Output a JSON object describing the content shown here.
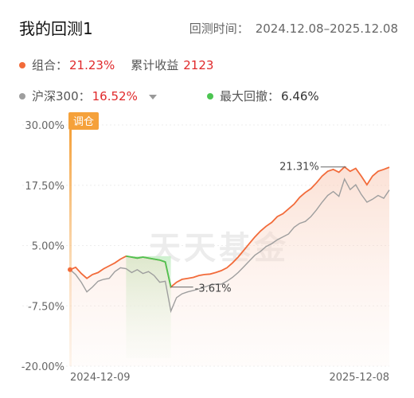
{
  "header": {
    "title": "我的回测1",
    "period_label": "回测时间：",
    "period_range": "2024.12.08–2025.12.08"
  },
  "legend": {
    "portfolio": {
      "label": "组合：",
      "value": "21.23%",
      "color": "#f26b3a"
    },
    "cumulative": {
      "label": "累计收益",
      "value": "2123",
      "color": "#e0292b"
    },
    "benchmark": {
      "label": "沪深300：",
      "value": "16.52%",
      "color": "#9e9e9e"
    },
    "drawdown": {
      "label": "最大回撤：",
      "value": "6.46%",
      "color": "#4cc552"
    }
  },
  "chart_data": {
    "type": "line",
    "x_start": "2024-12-09",
    "x_end": "2025-12-08",
    "ylim": [
      -20,
      30
    ],
    "y_ticks": [
      "30.00%",
      "17.50%",
      "5.00%",
      "-7.50%",
      "-20.00%"
    ],
    "y_tick_values": [
      30,
      17.5,
      5,
      -7.5,
      -20
    ],
    "x_ticks": [
      "2024-12-09",
      "2025-12-08"
    ],
    "rebalance_label": "调仓",
    "watermark": "天天基金",
    "annotations": [
      {
        "text": "21.31%",
        "kind": "peak"
      },
      {
        "text": "-3.61%",
        "kind": "trough"
      }
    ],
    "series": [
      {
        "key": "portfolio",
        "color": "#f26b3a",
        "values": [
          0.0,
          0.5,
          -0.8,
          -1.8,
          -1.0,
          -0.6,
          0.2,
          0.8,
          1.4,
          2.2,
          2.8,
          2.6,
          2.4,
          2.6,
          2.4,
          2.2,
          2.0,
          1.6,
          -3.6,
          -2.6,
          -2.0,
          -1.8,
          -1.6,
          -1.2,
          -1.0,
          -0.9,
          -0.6,
          -0.2,
          0.4,
          1.4,
          2.6,
          4.0,
          5.4,
          6.8,
          8.0,
          9.0,
          9.8,
          11.0,
          11.6,
          12.6,
          13.6,
          15.0,
          16.0,
          16.8,
          18.0,
          19.4,
          20.4,
          20.8,
          20.2,
          21.3,
          20.4,
          21.0,
          19.4,
          17.6,
          19.4,
          20.4,
          20.8,
          21.23
        ]
      },
      {
        "key": "benchmark",
        "color": "#9e9e9e",
        "values": [
          0.0,
          -1.0,
          -2.6,
          -4.6,
          -3.6,
          -2.4,
          -2.0,
          -1.8,
          -0.4,
          0.4,
          0.2,
          -0.6,
          0.0,
          -0.8,
          -0.4,
          -1.2,
          -2.6,
          -2.4,
          -8.6,
          -5.8,
          -5.0,
          -4.6,
          -4.3,
          -4.0,
          -3.6,
          -3.2,
          -3.0,
          -3.0,
          -2.4,
          -1.6,
          -0.6,
          0.6,
          1.8,
          3.0,
          3.8,
          4.8,
          5.4,
          6.2,
          6.8,
          7.4,
          8.8,
          9.6,
          10.0,
          11.0,
          12.4,
          14.0,
          15.4,
          16.2,
          15.2,
          18.8,
          16.6,
          17.6,
          15.6,
          14.0,
          14.6,
          15.4,
          14.8,
          16.52
        ]
      }
    ],
    "drawdown_segment": {
      "start_index": 10,
      "end_index": 18
    }
  }
}
